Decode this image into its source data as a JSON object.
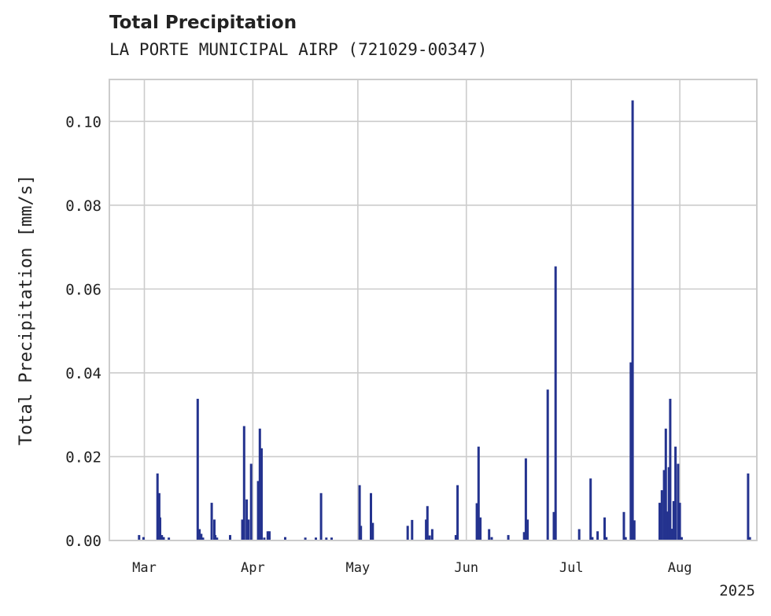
{
  "chart_data": {
    "type": "bar",
    "title": "Total Precipitation",
    "subtitle": "LA PORTE MUNICIPAL AIRP (721029-00347)",
    "xlabel": "",
    "ylabel": "Total Precipitation [mm/s]",
    "year_label": "2025",
    "ylim": [
      0,
      0.11
    ],
    "xlim": [
      "2025-02-19T00:00",
      "2025-08-23T00:00"
    ],
    "grid": true,
    "color": "#24338f",
    "y_ticks": [
      0.0,
      0.02,
      0.04,
      0.06,
      0.08,
      0.1
    ],
    "y_tick_labels": [
      "0.00",
      "0.02",
      "0.04",
      "0.06",
      "0.08",
      "0.10"
    ],
    "x_ticks": [
      {
        "date": "2025-03-01",
        "label": "Mar"
      },
      {
        "date": "2025-04-01",
        "label": "Apr"
      },
      {
        "date": "2025-05-01",
        "label": "May"
      },
      {
        "date": "2025-06-01",
        "label": "Jun"
      },
      {
        "date": "2025-07-01",
        "label": "Jul"
      },
      {
        "date": "2025-08-01",
        "label": "Aug"
      }
    ],
    "series": [
      {
        "name": "Total Precipitation",
        "x": [
          "2025-02-27T12:00",
          "2025-02-28T18:00",
          "2025-03-04T18:00",
          "2025-03-05T06:00",
          "2025-03-05T12:00",
          "2025-03-06T00:00",
          "2025-03-06T12:00",
          "2025-03-08T00:00",
          "2025-03-16T06:00",
          "2025-03-16T18:00",
          "2025-03-17T06:00",
          "2025-03-17T18:00",
          "2025-03-20T06:00",
          "2025-03-21T00:00",
          "2025-03-21T06:00",
          "2025-03-21T18:00",
          "2025-03-25T12:00",
          "2025-03-29T00:00",
          "2025-03-29T12:00",
          "2025-03-30T06:00",
          "2025-03-30T18:00",
          "2025-03-31T12:00",
          "2025-04-02T12:00",
          "2025-04-03T00:00",
          "2025-04-03T12:00",
          "2025-04-04T06:00",
          "2025-04-05T06:00",
          "2025-04-05T18:00",
          "2025-04-10T06:00",
          "2025-04-16T00:00",
          "2025-04-19T00:00",
          "2025-04-20T12:00",
          "2025-04-22T00:00",
          "2025-04-23T12:00",
          "2025-05-01T12:00",
          "2025-05-01T21:00",
          "2025-05-04T18:00",
          "2025-05-05T06:00",
          "2025-05-15T06:00",
          "2025-05-16T12:00",
          "2025-05-20T12:00",
          "2025-05-20T21:00",
          "2025-05-21T12:00",
          "2025-05-22T06:00",
          "2025-05-29T00:00",
          "2025-05-29T12:00",
          "2025-06-04T00:00",
          "2025-06-04T12:00",
          "2025-06-05T00:00",
          "2025-06-07T12:00",
          "2025-06-08T06:00",
          "2025-06-13T00:00",
          "2025-06-17T12:00",
          "2025-06-18T00:00",
          "2025-06-18T12:00",
          "2025-06-24T06:00",
          "2025-06-26T00:00",
          "2025-06-26T12:00",
          "2025-07-03T06:00",
          "2025-07-06T12:00",
          "2025-07-07T00:00",
          "2025-07-08T12:00",
          "2025-07-10T12:00",
          "2025-07-11T00:00",
          "2025-07-16T00:00",
          "2025-07-16T12:00",
          "2025-07-18T00:00",
          "2025-07-18T12:00",
          "2025-07-19T00:00",
          "2025-07-26T06:00",
          "2025-07-26T21:00",
          "2025-07-27T12:00",
          "2025-07-28T00:00",
          "2025-07-28T12:00",
          "2025-07-28T21:00",
          "2025-07-29T06:00",
          "2025-07-29T18:00",
          "2025-07-30T06:00",
          "2025-07-30T18:00",
          "2025-07-31T12:00",
          "2025-08-01T00:00",
          "2025-08-01T12:00",
          "2025-08-20T12:00",
          "2025-08-21T00:00"
        ],
        "values": [
          0.0013,
          0.0008,
          0.016,
          0.0113,
          0.0055,
          0.0013,
          0.0008,
          0.0007,
          0.0338,
          0.0027,
          0.0016,
          0.0007,
          0.009,
          0.005,
          0.0013,
          0.0007,
          0.0013,
          0.005,
          0.0273,
          0.0098,
          0.005,
          0.0183,
          0.0142,
          0.0267,
          0.022,
          0.0007,
          0.0022,
          0.0022,
          0.0008,
          0.0007,
          0.0007,
          0.0113,
          0.0007,
          0.0007,
          0.0132,
          0.0035,
          0.0113,
          0.0042,
          0.0035,
          0.0049,
          0.005,
          0.0082,
          0.0012,
          0.0027,
          0.0013,
          0.0132,
          0.0089,
          0.0224,
          0.0055,
          0.0027,
          0.0008,
          0.0013,
          0.002,
          0.0196,
          0.005,
          0.036,
          0.0068,
          0.0654,
          0.0027,
          0.0148,
          0.0008,
          0.0022,
          0.0055,
          0.0008,
          0.0068,
          0.0008,
          0.0425,
          0.105,
          0.0048,
          0.009,
          0.012,
          0.0168,
          0.0267,
          0.0069,
          0.0175,
          0.0338,
          0.0028,
          0.0094,
          0.0224,
          0.0183,
          0.009,
          0.0008,
          0.016,
          0.0008
        ]
      }
    ]
  }
}
